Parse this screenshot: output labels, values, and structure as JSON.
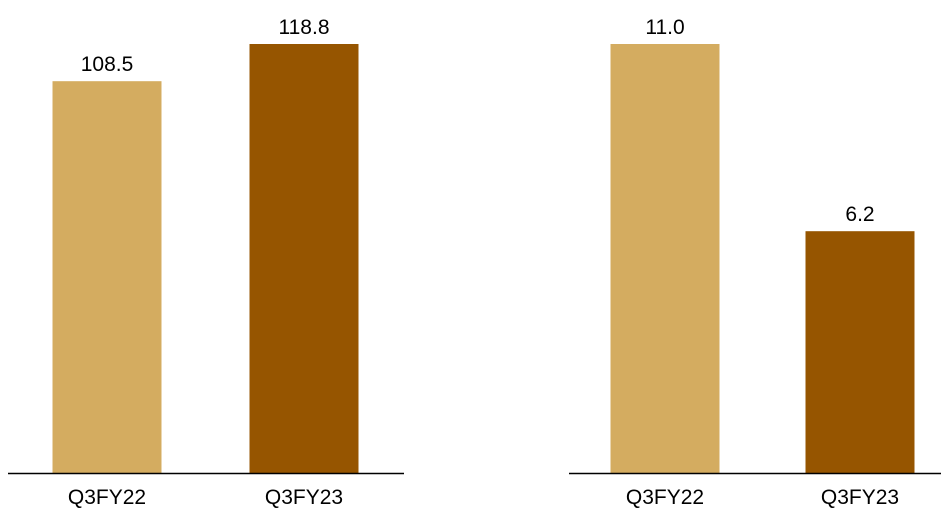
{
  "colors": {
    "prior_year": "#D4AC60",
    "current_year": "#965500",
    "axis": "#000000"
  },
  "chart_data": [
    {
      "type": "bar",
      "categories": [
        "Q3FY22",
        "Q3FY23"
      ],
      "values": [
        108.5,
        118.8
      ],
      "data_labels": [
        "108.5",
        "118.8"
      ],
      "title": "",
      "xlabel": "",
      "ylabel": "",
      "ylim": [
        0,
        118.8
      ],
      "grid": false,
      "legend": "none"
    },
    {
      "type": "bar",
      "categories": [
        "Q3FY22",
        "Q3FY23"
      ],
      "values": [
        11.0,
        6.2
      ],
      "data_labels": [
        "11.0",
        "6.2"
      ],
      "title": "",
      "xlabel": "",
      "ylabel": "",
      "ylim": [
        0,
        11.0
      ],
      "grid": false,
      "legend": "none"
    }
  ]
}
